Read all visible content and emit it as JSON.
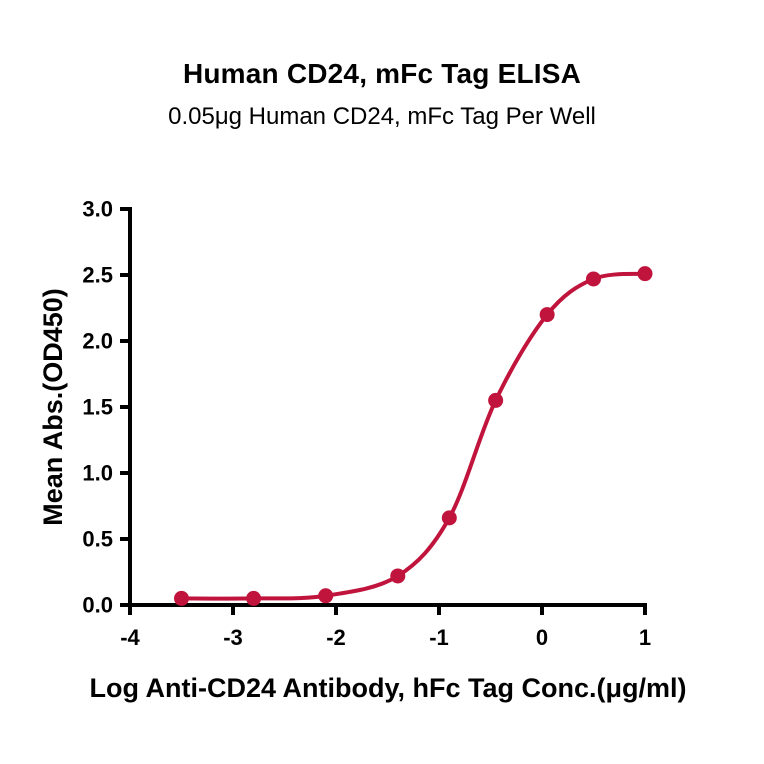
{
  "title": "Human CD24, mFc Tag ELISA",
  "subtitle": "0.05μg Human CD24, mFc Tag Per Well",
  "chart_data": {
    "type": "line",
    "x": [
      -3.5,
      -2.8,
      -2.1,
      -1.4,
      -0.9,
      -0.45,
      0.05,
      0.5,
      1.0
    ],
    "y": [
      0.05,
      0.05,
      0.07,
      0.22,
      0.66,
      1.55,
      2.2,
      2.47,
      2.51
    ],
    "title": "Human CD24, mFc Tag ELISA",
    "subtitle": "0.05μg Human CD24, mFc Tag Per Well",
    "xlabel": "Log Anti-CD24 Antibody, hFc Tag Conc.(μg/ml)",
    "ylabel": "Mean Abs.(OD450)",
    "xlim": [
      -4,
      1
    ],
    "ylim": [
      0,
      3
    ],
    "xtick_labels": [
      "-4",
      "-3",
      "-2",
      "-1",
      "0",
      "1"
    ],
    "ytick_labels": [
      "0.0",
      "0.5",
      "1.0",
      "1.5",
      "2.0",
      "2.5",
      "3.0"
    ],
    "curve_color": "#C0143C",
    "marker_color": "#C0143C",
    "grid": false,
    "legend_position": "none"
  }
}
